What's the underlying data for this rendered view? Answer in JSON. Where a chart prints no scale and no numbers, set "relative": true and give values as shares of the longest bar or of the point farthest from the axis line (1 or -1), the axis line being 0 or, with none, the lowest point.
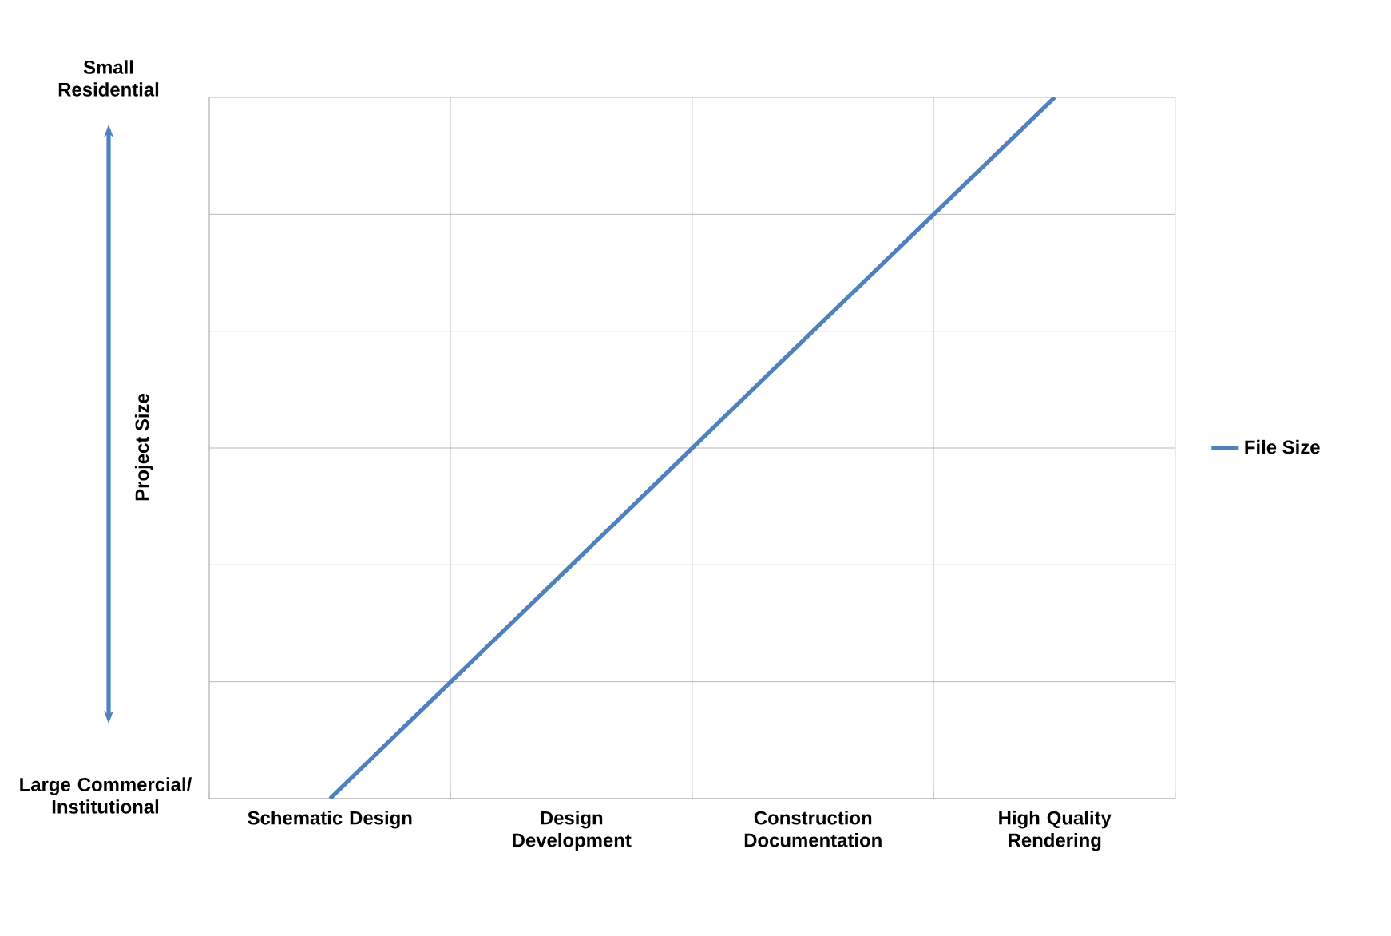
{
  "chart_data": {
    "type": "line",
    "relative": true,
    "categories": [
      "Schematic Design",
      "Design Development",
      "Construction Documentation",
      "High Quality Rendering"
    ],
    "series": [
      {
        "name": "File Size",
        "color": "#4f81bd",
        "values": [
          0,
          0.333,
          0.667,
          1
        ]
      }
    ],
    "ylabel": "Project Size",
    "annotations": [
      "Small Residential",
      "Large Commercial/ Institutional"
    ],
    "grid": true,
    "legend": "right",
    "marker": "none",
    "line_style": "solid"
  }
}
